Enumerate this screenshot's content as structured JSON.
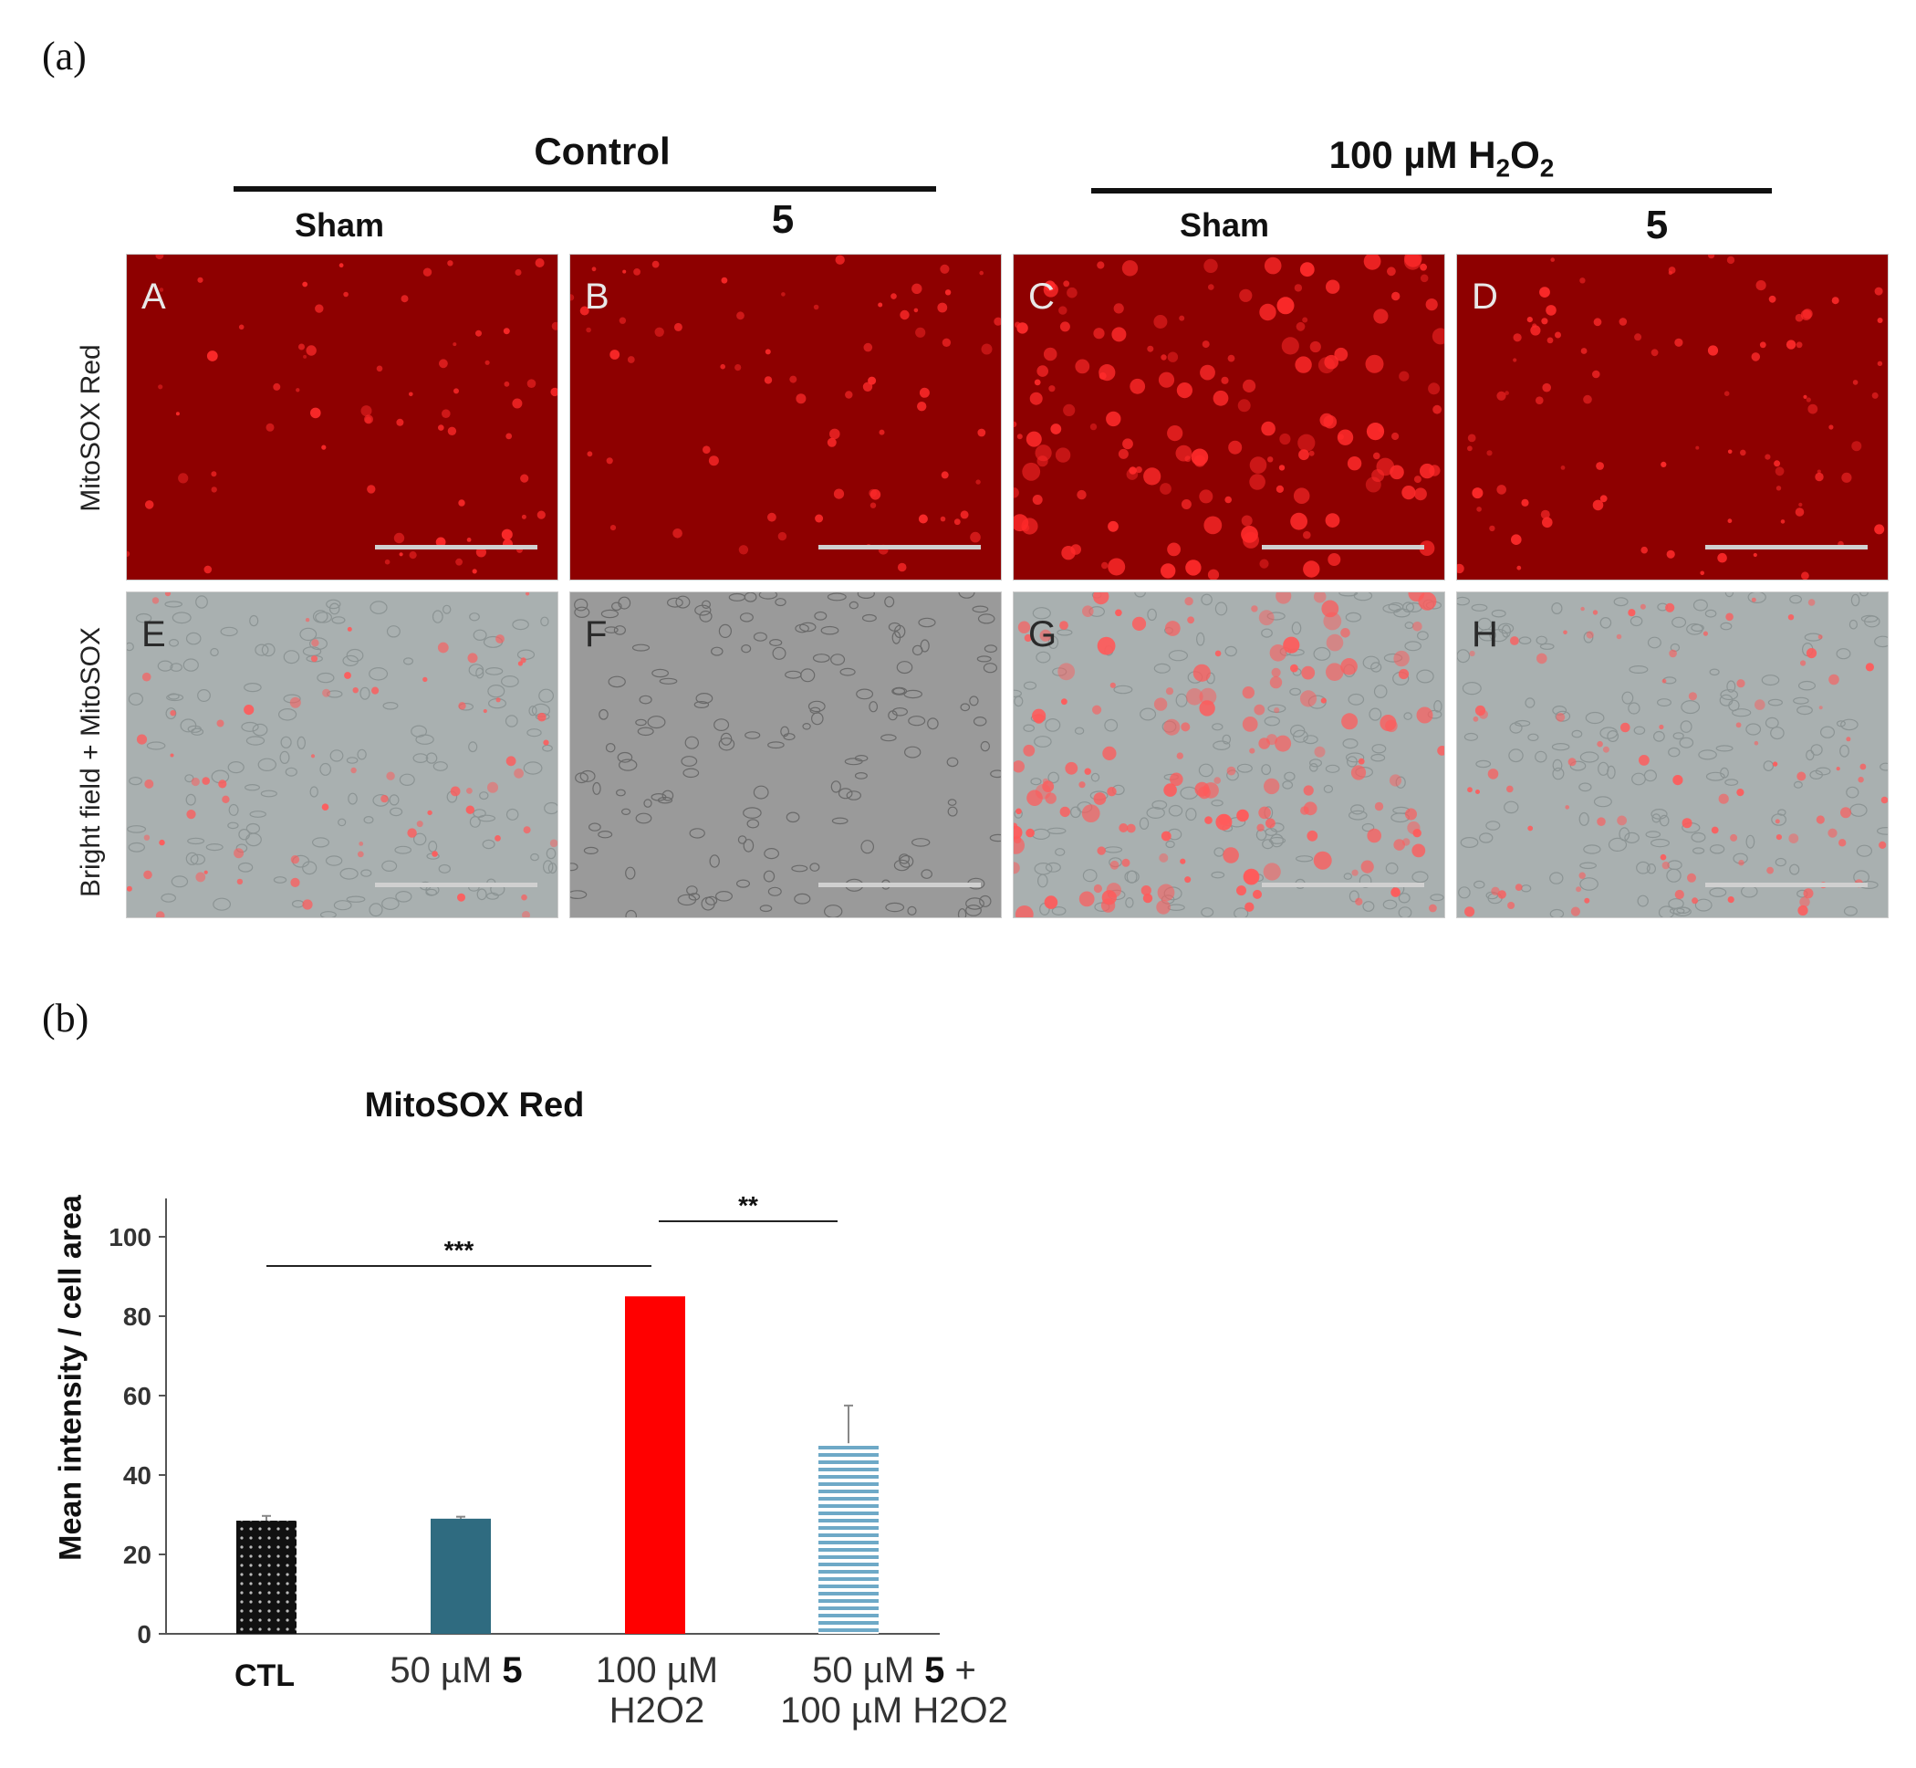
{
  "figure": {
    "panel_a_letter": "(a)",
    "panel_b_letter": "(b)",
    "groups": [
      {
        "title_main": "Control",
        "title_sub": ""
      },
      {
        "title_main": "100 µM H",
        "title_sub": "2",
        "title_mid": "O",
        "title_sub2": "2"
      }
    ],
    "columns": [
      "Sham",
      "5",
      "Sham",
      "5"
    ],
    "rows": [
      "MitoSOX Red",
      "Bright field + MitoSOX"
    ],
    "images": [
      {
        "letter": "A",
        "type": "red",
        "intensity": "low"
      },
      {
        "letter": "B",
        "type": "red",
        "intensity": "low"
      },
      {
        "letter": "C",
        "type": "red",
        "intensity": "high"
      },
      {
        "letter": "D",
        "type": "red",
        "intensity": "medium"
      },
      {
        "letter": "E",
        "type": "bright",
        "intensity": "low"
      },
      {
        "letter": "F",
        "type": "bright",
        "intensity": "none"
      },
      {
        "letter": "G",
        "type": "bright",
        "intensity": "high"
      },
      {
        "letter": "H",
        "type": "bright",
        "intensity": "medium"
      }
    ]
  },
  "chart_data": {
    "type": "bar",
    "title": "MitoSOX Red",
    "ylabel": "Mean intensity / cell area",
    "ylim": [
      0,
      100
    ],
    "yticks": [
      0,
      20,
      40,
      60,
      80,
      100
    ],
    "categories": [
      {
        "line1_pre": "CTL",
        "line1_bold": "",
        "line1_post": "",
        "line2": ""
      },
      {
        "line1_pre": "50 µM ",
        "line1_bold": "5",
        "line1_post": "",
        "line2": ""
      },
      {
        "line1_pre": "100 µM",
        "line1_bold": "",
        "line1_post": "",
        "line2": "H2O2"
      },
      {
        "line1_pre": "50 µM ",
        "line1_bold": "5",
        "line1_post": " +",
        "line2": "100 µM H2O2"
      }
    ],
    "values": [
      28.5,
      29,
      85,
      48
    ],
    "errors": [
      1.2,
      0.5,
      0,
      9.5
    ],
    "colors": [
      "#111111",
      "#2f6b80",
      "#ff0000",
      "#8fc3da"
    ],
    "patterns": [
      "dots",
      "solid",
      "solid",
      "hstripes"
    ],
    "significance": [
      {
        "from": 0,
        "to": 2,
        "label": "***"
      },
      {
        "from": 2,
        "to": 3,
        "label": "**"
      }
    ],
    "grid": false
  }
}
